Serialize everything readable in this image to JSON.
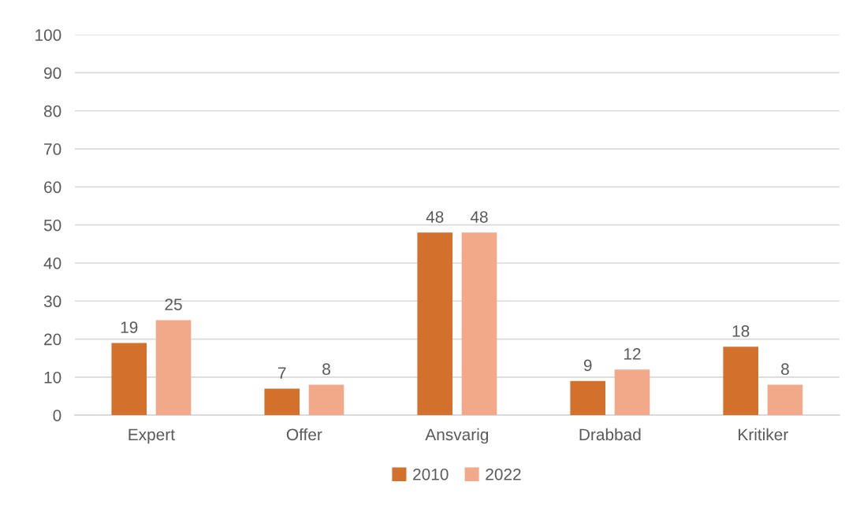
{
  "chart_data": {
    "type": "bar",
    "categories": [
      "Expert",
      "Offer",
      "Ansvarig",
      "Drabbad",
      "Kritiker"
    ],
    "series": [
      {
        "name": "2010",
        "color": "#d2702c",
        "values": [
          19,
          7,
          48,
          9,
          18
        ]
      },
      {
        "name": "2022",
        "color": "#f2a98a",
        "values": [
          25,
          8,
          48,
          12,
          8
        ]
      }
    ],
    "ylim": [
      0,
      100
    ],
    "yticks": [
      0,
      10,
      20,
      30,
      40,
      50,
      60,
      70,
      80,
      90,
      100
    ],
    "grid": "y",
    "legend": "bottom",
    "data_labels": true
  }
}
